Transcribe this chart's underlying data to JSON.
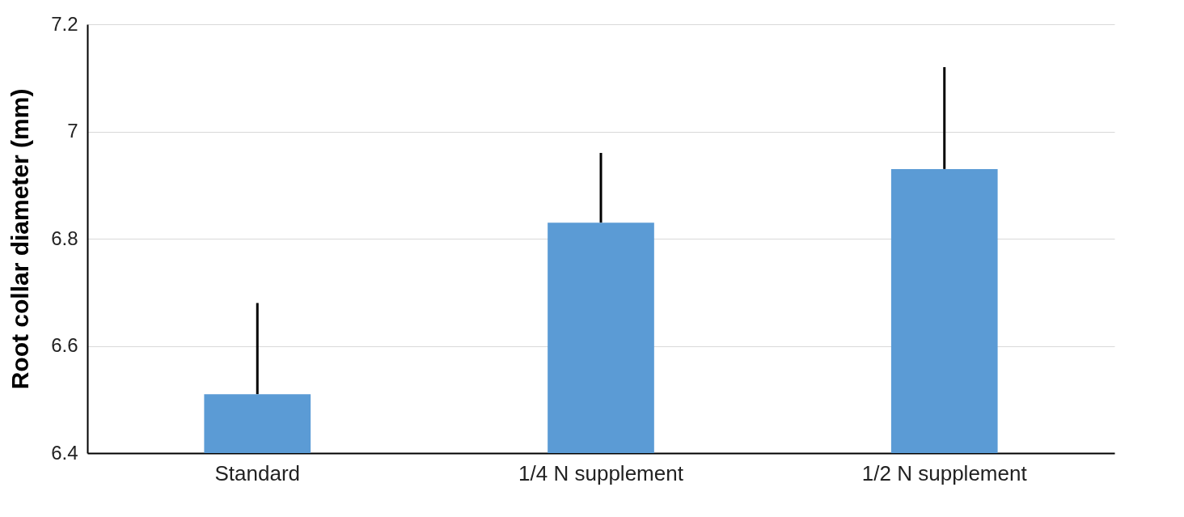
{
  "chart_data": {
    "type": "bar",
    "ylabel": "Root collar diameter (mm)",
    "categories": [
      "Standard",
      "1/4 N supplement",
      "1/2 N supplement"
    ],
    "values": [
      6.51,
      6.83,
      6.93
    ],
    "color": "#5b9bd5",
    "errors": [
      [
        6.51,
        6.68
      ],
      [
        6.83,
        6.96
      ],
      [
        6.93,
        7.12
      ]
    ],
    "ylim": [
      6.4,
      7.2
    ],
    "yticks": [
      {
        "value": 6.4,
        "label": "6.4"
      },
      {
        "value": 6.6,
        "label": "6.6"
      },
      {
        "value": 6.8,
        "label": "6.8"
      },
      7,
      {
        "value": 7.2,
        "label": "7.2"
      }
    ],
    "grid": "y"
  }
}
